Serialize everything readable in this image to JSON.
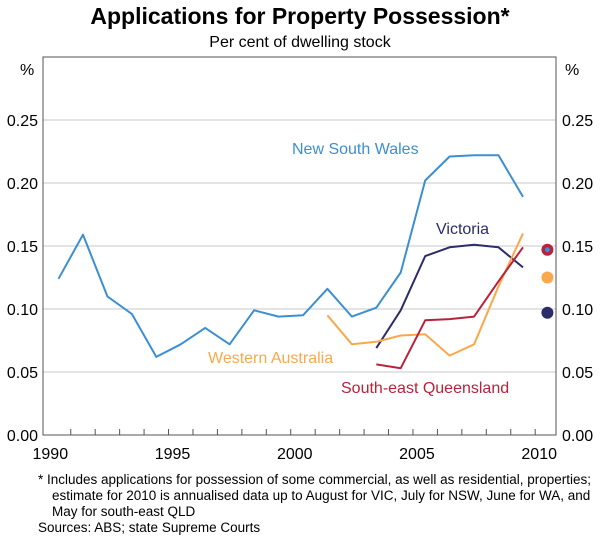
{
  "chart_data": {
    "type": "line",
    "title": "Applications for Property Possession*",
    "subtitle": "Per cent of dwelling stock",
    "ylabel_left": "%",
    "ylabel_right": "%",
    "ylim": [
      0,
      0.3
    ],
    "yticks": [
      "0.00",
      "0.05",
      "0.10",
      "0.15",
      "0.20",
      "0.25"
    ],
    "ytick_values": [
      0,
      0.05,
      0.1,
      0.15,
      0.2,
      0.25
    ],
    "xlim": [
      1990,
      2010
    ],
    "xticks": [
      "1990",
      "1995",
      "2000",
      "2005",
      "2010"
    ],
    "xtick_values": [
      1990,
      1995,
      2000,
      2005,
      2010
    ],
    "grid": true,
    "series": [
      {
        "name": "New South Wales",
        "color": "#3b8fd3",
        "x": [
          1990,
          1991,
          1992,
          1993,
          1994,
          1995,
          1996,
          1997,
          1998,
          1999,
          2000,
          2001,
          2002,
          2003,
          2004,
          2005,
          2006,
          2007,
          2008,
          2009
        ],
        "values": [
          0.124,
          0.159,
          0.11,
          0.096,
          0.062,
          0.072,
          0.085,
          0.072,
          0.099,
          0.094,
          0.095,
          0.116,
          0.094,
          0.101,
          0.129,
          0.202,
          0.221,
          0.222,
          0.222,
          0.189
        ],
        "estimate_2010": 0.147
      },
      {
        "name": "Victoria",
        "color": "#2b2c6a",
        "x": [
          2003,
          2004,
          2005,
          2006,
          2007,
          2008,
          2009
        ],
        "values": [
          0.069,
          0.099,
          0.142,
          0.149,
          0.151,
          0.149,
          0.133
        ],
        "estimate_2010": 0.097
      },
      {
        "name": "Western Australia",
        "color": "#f9a94b",
        "x": [
          2001,
          2002,
          2003,
          2004,
          2005,
          2006,
          2007,
          2008,
          2009
        ],
        "values": [
          0.095,
          0.072,
          0.074,
          0.079,
          0.08,
          0.063,
          0.072,
          0.118,
          0.16
        ],
        "estimate_2010": 0.125
      },
      {
        "name": "South-east Queensland",
        "color": "#b8233a",
        "x": [
          2003,
          2004,
          2005,
          2006,
          2007,
          2008,
          2009
        ],
        "values": [
          0.056,
          0.053,
          0.091,
          0.092,
          0.094,
          0.122,
          0.149
        ],
        "estimate_2010": 0.147
      }
    ]
  },
  "footnote": "*  Includes applications for possession of some commercial, as well as residential, properties; estimate for 2010 is annualised data up to August for VIC, July for NSW, June for WA, and May for south-east QLD",
  "sources": "Sources: ABS; state Supreme Courts"
}
